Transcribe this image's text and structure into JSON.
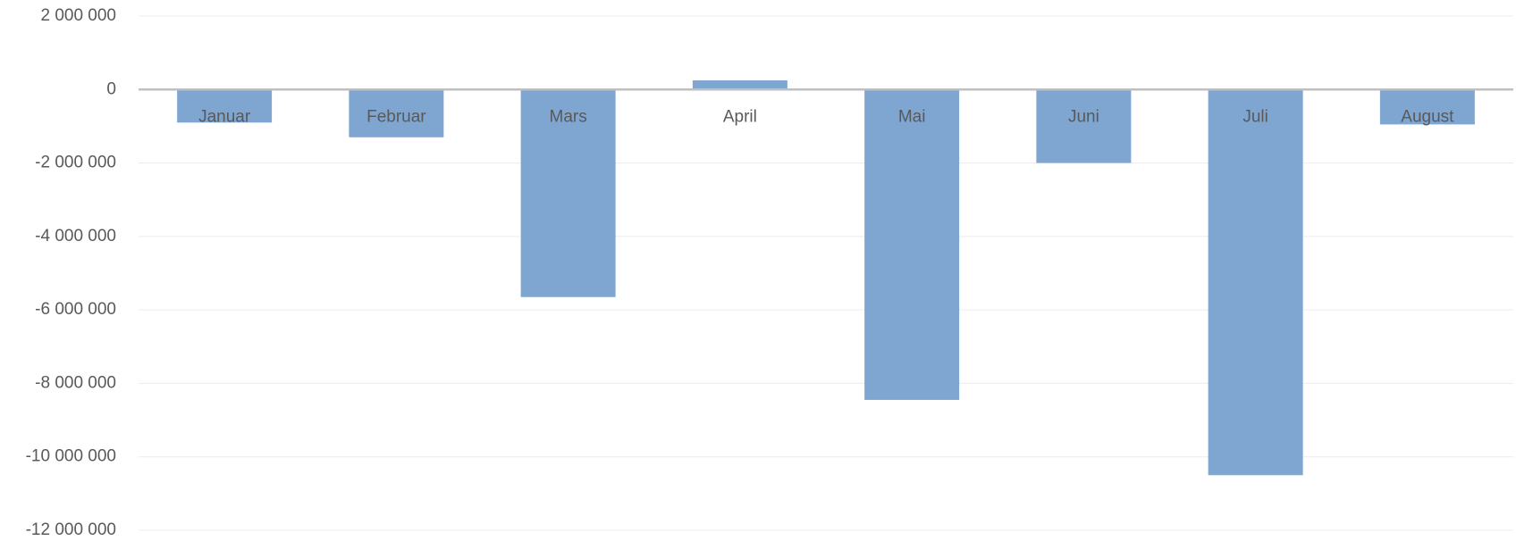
{
  "chart_data": {
    "type": "bar",
    "categories": [
      "Januar",
      "Februar",
      "Mars",
      "April",
      "Mai",
      "Juni",
      "Juli",
      "August"
    ],
    "values": [
      -900000,
      -1300000,
      -5650000,
      250000,
      -8450000,
      -2000000,
      -10500000,
      -950000
    ],
    "color": "#7fa6d1",
    "ylim": [
      -12000000,
      2000000
    ],
    "yticks": [
      {
        "value": -12000000,
        "label": "-12 000 000"
      },
      {
        "value": -10000000,
        "label": "-10 000 000"
      },
      {
        "value": -8000000,
        "label": "-8 000 000"
      },
      {
        "value": -6000000,
        "label": "-6 000 000"
      },
      {
        "value": -4000000,
        "label": "-4 000 000"
      },
      {
        "value": -2000000,
        "label": "-2 000 000"
      },
      0,
      {
        "value": 2000000,
        "label": "2 000 000"
      }
    ],
    "grid": true
  }
}
